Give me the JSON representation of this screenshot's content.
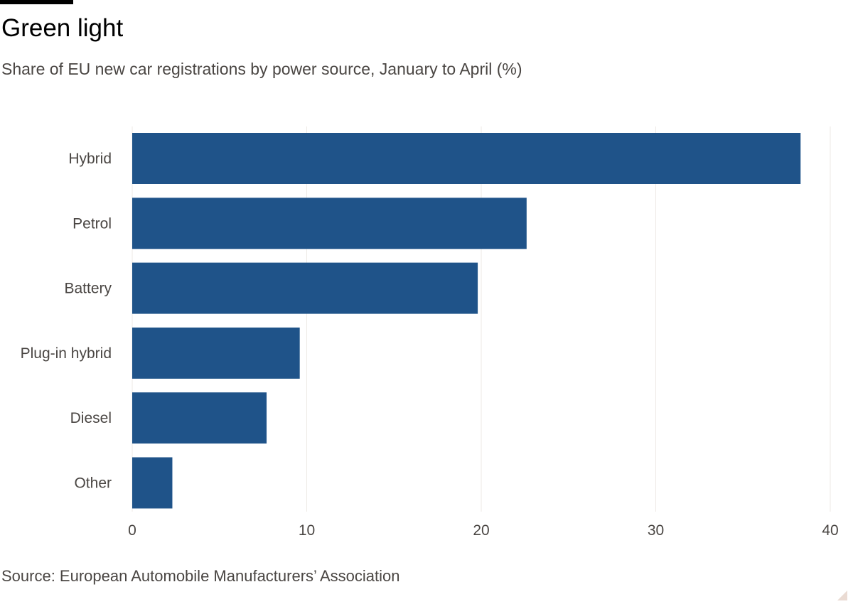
{
  "header": {
    "title": "Green light",
    "subtitle": "Share of EU new car registrations by power source, January to April (%)"
  },
  "footer": {
    "source": "Source: European Automobile Manufacturers’ Association"
  },
  "colors": {
    "bar": "#1f5389",
    "text": "#4a4643",
    "title": "#000000"
  },
  "chart_data": {
    "type": "bar",
    "orientation": "horizontal",
    "title": "Green light",
    "subtitle": "Share of EU new car registrations by power source, January to April (%)",
    "categories": [
      "Hybrid",
      "Petrol",
      "Battery",
      "Plug-in hybrid",
      "Diesel",
      "Other"
    ],
    "values": [
      38.3,
      22.6,
      19.8,
      9.6,
      7.7,
      2.3
    ],
    "xlim": [
      0,
      40
    ],
    "xticks": [
      0,
      10,
      20,
      30,
      40
    ],
    "xlabel": "",
    "ylabel": "",
    "grid": true
  }
}
